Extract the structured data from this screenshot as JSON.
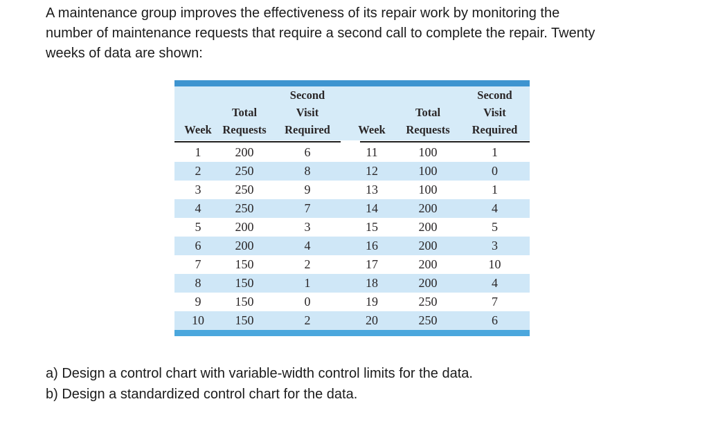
{
  "problem": {
    "statement_lines": [
      "A maintenance group improves the effectiveness of its repair work by monitoring the",
      "number of maintenance requests that require a second call to complete the repair. Twenty",
      "weeks of data are shown:"
    ],
    "questions": [
      "a) Design a control chart with variable-width control limits for the data.",
      "b) Design a standardized control chart for the data."
    ]
  },
  "table": {
    "headers": {
      "week": "Week",
      "total_line1": "Total",
      "total_line2": "Requests",
      "second_line1": "Second",
      "second_line2": "Visit",
      "second_line3": "Required"
    },
    "rows": [
      {
        "w1": "1",
        "t1": "200",
        "s1": "6",
        "w2": "11",
        "t2": "100",
        "s2": "1"
      },
      {
        "w1": "2",
        "t1": "250",
        "s1": "8",
        "w2": "12",
        "t2": "100",
        "s2": "0"
      },
      {
        "w1": "3",
        "t1": "250",
        "s1": "9",
        "w2": "13",
        "t2": "100",
        "s2": "1"
      },
      {
        "w1": "4",
        "t1": "250",
        "s1": "7",
        "w2": "14",
        "t2": "200",
        "s2": "4"
      },
      {
        "w1": "5",
        "t1": "200",
        "s1": "3",
        "w2": "15",
        "t2": "200",
        "s2": "5"
      },
      {
        "w1": "6",
        "t1": "200",
        "s1": "4",
        "w2": "16",
        "t2": "200",
        "s2": "3"
      },
      {
        "w1": "7",
        "t1": "150",
        "s1": "2",
        "w2": "17",
        "t2": "200",
        "s2": "10"
      },
      {
        "w1": "8",
        "t1": "150",
        "s1": "1",
        "w2": "18",
        "t2": "200",
        "s2": "4"
      },
      {
        "w1": "9",
        "t1": "150",
        "s1": "0",
        "w2": "19",
        "t2": "250",
        "s2": "7"
      },
      {
        "w1": "10",
        "t1": "150",
        "s1": "2",
        "w2": "20",
        "t2": "250",
        "s2": "6"
      }
    ],
    "colors": {
      "top_bar": "#3e94d0",
      "bottom_bar": "#4ba7dd",
      "header_bg": "#d6ebf8",
      "stripe_bg": "#cfe7f7",
      "rule": "#1e1e1e",
      "text": "#2a2627"
    }
  }
}
